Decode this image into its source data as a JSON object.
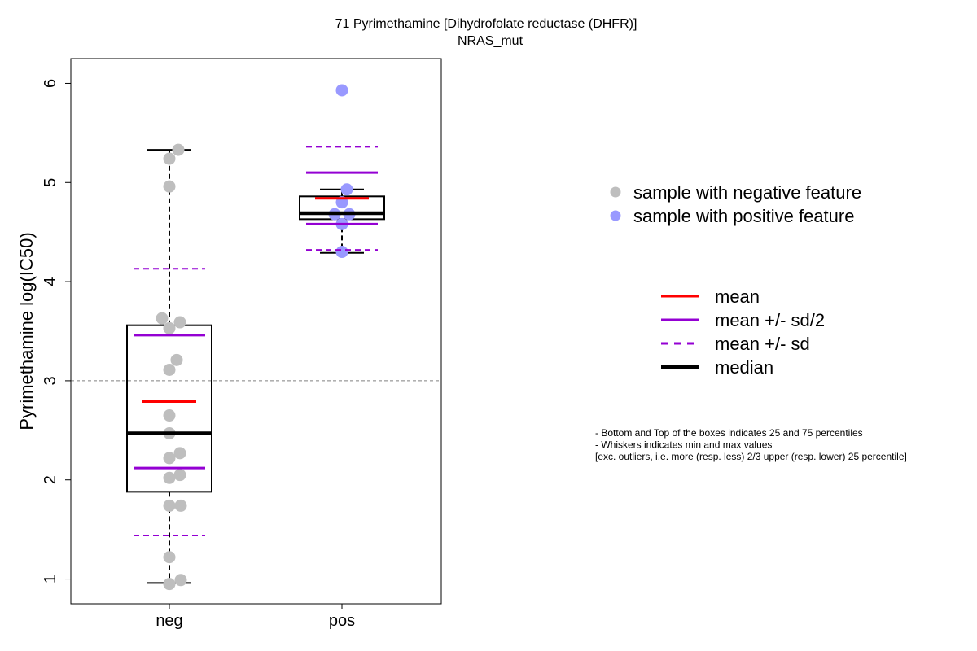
{
  "chart_data": {
    "type": "boxplot",
    "title": "71 Pyrimethamine [Dihydrofolate reductase (DHFR)]",
    "subtitle": "NRAS_mut",
    "ylabel": "Pyrimethamine log(IC50)",
    "xlabel": "",
    "ylim": [
      0.75,
      6.25
    ],
    "yticks": [
      1,
      2,
      3,
      4,
      5,
      6
    ],
    "reference_line": 3,
    "grid": false,
    "categories": [
      "neg",
      "pos"
    ],
    "groups": [
      {
        "name": "neg",
        "point_color": "#bebebe",
        "box": {
          "q1": 1.88,
          "median": 2.47,
          "q3": 3.56,
          "whisker_low": 0.96,
          "whisker_high": 5.33
        },
        "mean": 2.79,
        "mean_minus_half_sd": 2.12,
        "mean_plus_half_sd": 3.46,
        "mean_minus_sd": 1.44,
        "mean_plus_sd": 4.13,
        "points": [
          {
            "x": 0.0,
            "y": 0.95
          },
          {
            "x": 0.14,
            "y": 0.99
          },
          {
            "x": 0.0,
            "y": 1.22
          },
          {
            "x": 0.0,
            "y": 1.74
          },
          {
            "x": 0.14,
            "y": 1.74
          },
          {
            "x": 0.0,
            "y": 2.02
          },
          {
            "x": 0.13,
            "y": 2.05
          },
          {
            "x": 0.0,
            "y": 2.22
          },
          {
            "x": 0.13,
            "y": 2.27
          },
          {
            "x": 0.0,
            "y": 2.47
          },
          {
            "x": 0.0,
            "y": 2.65
          },
          {
            "x": 0.0,
            "y": 3.11
          },
          {
            "x": 0.09,
            "y": 3.21
          },
          {
            "x": 0.0,
            "y": 3.53
          },
          {
            "x": 0.13,
            "y": 3.59
          },
          {
            "x": -0.09,
            "y": 3.63
          },
          {
            "x": 0.0,
            "y": 4.96
          },
          {
            "x": 0.0,
            "y": 5.24
          },
          {
            "x": 0.11,
            "y": 5.33
          }
        ]
      },
      {
        "name": "pos",
        "point_color": "#9999ff",
        "box": {
          "q1": 4.63,
          "median": 4.69,
          "q3": 4.86,
          "whisker_low": 4.29,
          "whisker_high": 4.93
        },
        "mean": 4.84,
        "mean_minus_half_sd": 4.58,
        "mean_plus_half_sd": 5.1,
        "mean_minus_sd": 4.32,
        "mean_plus_sd": 5.36,
        "points": [
          {
            "x": 0.0,
            "y": 4.3
          },
          {
            "x": 0.0,
            "y": 4.58
          },
          {
            "x": -0.09,
            "y": 4.68
          },
          {
            "x": 0.09,
            "y": 4.68
          },
          {
            "x": 0.0,
            "y": 4.8
          },
          {
            "x": 0.06,
            "y": 4.93
          },
          {
            "x": 0.0,
            "y": 5.93
          }
        ]
      }
    ],
    "colors": {
      "mean": "#ff0000",
      "sd_half": "#9400d3",
      "sd": "#9400d3",
      "median": "#000000",
      "reference": "#808080",
      "negative_point": "#bebebe",
      "positive_point": "#9999ff"
    },
    "legend_points": [
      {
        "label": "sample with negative feature",
        "color": "#bebebe"
      },
      {
        "label": "sample with positive feature",
        "color": "#9999ff"
      }
    ],
    "legend_lines": [
      {
        "label": "mean",
        "color": "#ff0000",
        "style": "solid",
        "weight": "normal"
      },
      {
        "label": "mean +/- sd/2",
        "color": "#9400d3",
        "style": "solid",
        "weight": "normal"
      },
      {
        "label": "mean +/- sd",
        "color": "#9400d3",
        "style": "dashed",
        "weight": "normal"
      },
      {
        "label": "median",
        "color": "#000000",
        "style": "solid",
        "weight": "thick"
      }
    ],
    "notes": [
      "- Bottom and Top of the boxes indicates 25 and 75 percentiles",
      "- Whiskers indicates min and max values",
      "[exc. outliers, i.e. more (resp. less) 2/3 upper (resp. lower) 25 percentile]"
    ]
  }
}
